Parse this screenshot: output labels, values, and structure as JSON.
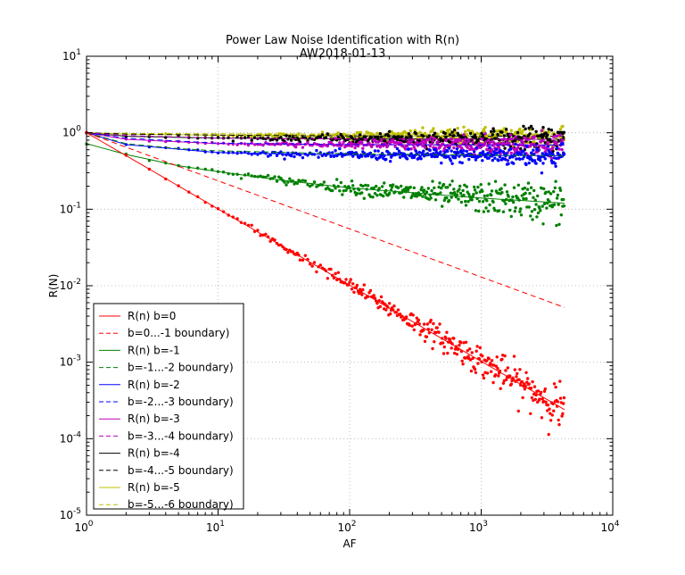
{
  "chart_data": {
    "type": "scatter",
    "title": "Power Law Noise Identification with R(n)",
    "subtitle": "AW2018-01-13",
    "xlabel": "AF",
    "ylabel": "R(N)",
    "xscale": "log",
    "yscale": "log",
    "xlim": [
      1,
      10000
    ],
    "ylim": [
      1e-05,
      10
    ],
    "grid": true,
    "legend_position": "lower-left",
    "x_ticks": [
      {
        "base": "10",
        "exp": "0"
      },
      {
        "base": "10",
        "exp": "1"
      },
      {
        "base": "10",
        "exp": "2"
      },
      {
        "base": "10",
        "exp": "3"
      },
      {
        "base": "10",
        "exp": "4"
      }
    ],
    "y_ticks": [
      {
        "base": "10",
        "exp": "-5"
      },
      {
        "base": "10",
        "exp": "-4"
      },
      {
        "base": "10",
        "exp": "-3"
      },
      {
        "base": "10",
        "exp": "-2"
      },
      {
        "base": "10",
        "exp": "-1"
      },
      {
        "base": "10",
        "exp": "0"
      },
      {
        "base": "10",
        "exp": "1"
      }
    ],
    "series": [
      {
        "name": "R(n) b=0",
        "color": "#ff0000",
        "b": 0,
        "curve": [
          [
            1,
            1.0
          ],
          [
            4300,
            0.00024
          ]
        ],
        "boundary_name": "b=0...-1 boundary)",
        "boundary": [
          [
            1,
            1.0
          ],
          [
            4300,
            0.0052
          ]
        ]
      },
      {
        "name": "R(n) b=-1",
        "color": "#008000",
        "b": -1,
        "curve": [
          [
            1,
            0.72
          ],
          [
            2,
            0.52
          ],
          [
            5,
            0.37
          ],
          [
            10,
            0.31
          ],
          [
            30,
            0.24
          ],
          [
            100,
            0.19
          ],
          [
            1000,
            0.14
          ],
          [
            4300,
            0.12
          ]
        ],
        "boundary_name": "b=-1...-2 boundary)",
        "boundary": [
          [
            1,
            1.0
          ],
          [
            2,
            0.72
          ],
          [
            5,
            0.62
          ],
          [
            10,
            0.58
          ],
          [
            100,
            0.53
          ],
          [
            4300,
            0.5
          ]
        ]
      },
      {
        "name": "R(n) b=-2",
        "color": "#0000ff",
        "b": -2,
        "curve": [
          [
            1,
            1.0
          ],
          [
            2,
            0.7
          ],
          [
            10,
            0.55
          ],
          [
            100,
            0.51
          ],
          [
            4300,
            0.5
          ]
        ],
        "boundary_name": "b=-2...-3 boundary)",
        "boundary": [
          [
            1,
            1.0
          ],
          [
            2,
            0.85
          ],
          [
            10,
            0.73
          ],
          [
            100,
            0.7
          ],
          [
            4300,
            0.69
          ]
        ]
      },
      {
        "name": "R(n) b=-3",
        "color": "#bf00bf",
        "b": -3,
        "curve": [
          [
            1,
            1.0
          ],
          [
            2,
            0.82
          ],
          [
            10,
            0.72
          ],
          [
            100,
            0.7
          ],
          [
            4300,
            0.69
          ]
        ],
        "boundary_name": "b=-3...-4 boundary)",
        "boundary": [
          [
            1,
            1.0
          ],
          [
            2,
            0.92
          ],
          [
            10,
            0.85
          ],
          [
            100,
            0.83
          ],
          [
            4300,
            0.82
          ]
        ]
      },
      {
        "name": "R(n) b=-4",
        "color": "#000000",
        "b": -4,
        "curve": [
          [
            1,
            1.0
          ],
          [
            2,
            0.9
          ],
          [
            10,
            0.85
          ],
          [
            100,
            0.83
          ],
          [
            4300,
            0.82
          ]
        ],
        "boundary_name": "b=-4...-5 boundary)",
        "boundary": [
          [
            1,
            1.0
          ],
          [
            2,
            0.96
          ],
          [
            10,
            0.93
          ],
          [
            100,
            0.91
          ],
          [
            4300,
            0.9
          ]
        ]
      },
      {
        "name": "R(n) b=-5",
        "color": "#bfbf00",
        "b": -5,
        "curve": [
          [
            1,
            1.0
          ],
          [
            2,
            0.96
          ],
          [
            10,
            0.93
          ],
          [
            100,
            0.91
          ],
          [
            4300,
            0.9
          ]
        ],
        "boundary_name": "b=-5...-6 boundary)",
        "boundary": [
          [
            1,
            1.0
          ],
          [
            2,
            0.98
          ],
          [
            10,
            0.97
          ],
          [
            100,
            0.96
          ],
          [
            4300,
            0.96
          ]
        ]
      }
    ]
  }
}
